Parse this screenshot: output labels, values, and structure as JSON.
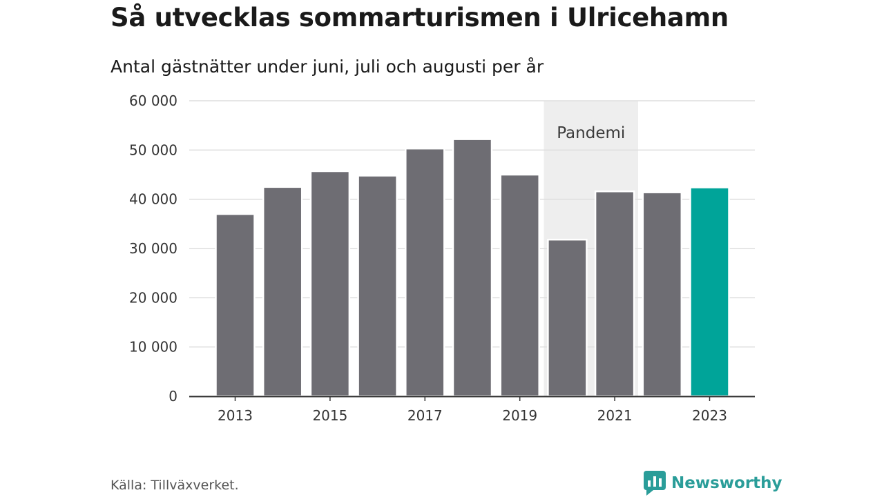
{
  "header": {
    "title": "Så utvecklas sommarturismen i Ulricehamn",
    "subtitle": "Antal gästnätter under juni, juli och augusti per år"
  },
  "footer": {
    "source": "Källa: Tillväxverket.",
    "brand": "Newsworthy"
  },
  "colors": {
    "bar": "#6e6d73",
    "highlight": "#00a499",
    "band": "#eeeeee",
    "grid": "#dddddd",
    "brand": "#2a9d99"
  },
  "chart_data": {
    "type": "bar",
    "categories": [
      "2013",
      "2014",
      "2015",
      "2016",
      "2017",
      "2018",
      "2019",
      "2020",
      "2021",
      "2022",
      "2023"
    ],
    "values": [
      37000,
      42500,
      45700,
      44800,
      50300,
      52200,
      45000,
      31800,
      41600,
      41400,
      42400
    ],
    "highlight_category": "2023",
    "x_tick_labels": [
      "2013",
      "2015",
      "2017",
      "2019",
      "2021",
      "2023"
    ],
    "y_ticks": [
      0,
      10000,
      20000,
      30000,
      40000,
      50000,
      60000
    ],
    "y_tick_labels": [
      "0",
      "10 000",
      "20 000",
      "30 000",
      "40 000",
      "50 000",
      "60 000"
    ],
    "ylim": [
      0,
      60000
    ],
    "grid": true,
    "annotation": {
      "label": "Pandemi",
      "from": "2020",
      "to": "2021"
    }
  }
}
